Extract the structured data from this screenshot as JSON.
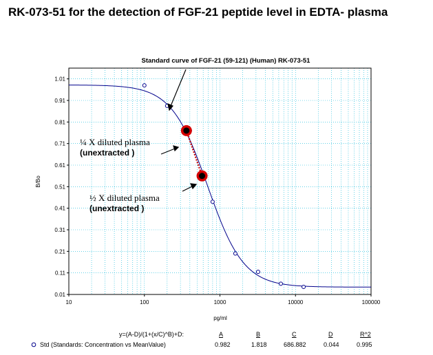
{
  "page_title": "RK-073-51  for the detection of FGF-21 peptide level in EDTA- plasma",
  "chart_data": {
    "type": "scatter",
    "title": "Standard curve of FGF-21 (59-121) (Human) RK-073-51",
    "xlabel": "pg/ml",
    "ylabel": "B/Bo",
    "x_scale": "log",
    "xlim": [
      10,
      100000
    ],
    "ylim": [
      0.01,
      1.06
    ],
    "x_ticks": [
      "10",
      "100",
      "1000",
      "10000",
      "100000"
    ],
    "y_ticks": [
      "0.01",
      "0.11",
      "0.21",
      "0.31",
      "0.41",
      "0.51",
      "0.61",
      "0.71",
      "0.81",
      "0.91",
      "1.01"
    ],
    "grid": true,
    "series": [
      {
        "name": "Std (Standards: Concentration vs MeanValue)",
        "color": "#00008b",
        "x": [
          100,
          200,
          400,
          800,
          1600,
          3200,
          6400,
          12800
        ],
        "y": [
          0.98,
          0.885,
          0.77,
          0.44,
          0.2,
          0.115,
          0.06,
          0.045
        ]
      }
    ],
    "fit": {
      "equation": "y=(A-D)/(1+(x/C)^B)+D:",
      "params": [
        {
          "label": "A",
          "value": "0.982"
        },
        {
          "label": "B",
          "value": "1.818"
        },
        {
          "label": "C",
          "value": "686.882"
        },
        {
          "label": "D",
          "value": "0.044"
        },
        {
          "label": "R^2",
          "value": "0.995"
        }
      ]
    },
    "annotations": [
      {
        "label": "¼ X diluted plasma",
        "sub": "(unextracted )",
        "x": 360,
        "y": 0.77
      },
      {
        "label": "½ X diluted plasma",
        "sub": "(unextracted )",
        "x": 580,
        "y": 0.56
      }
    ]
  },
  "colors": {
    "curve": "#00008b",
    "grid": "#00b4d8",
    "marker_ring": "#d40000",
    "dotted_line": "#cc0000"
  }
}
